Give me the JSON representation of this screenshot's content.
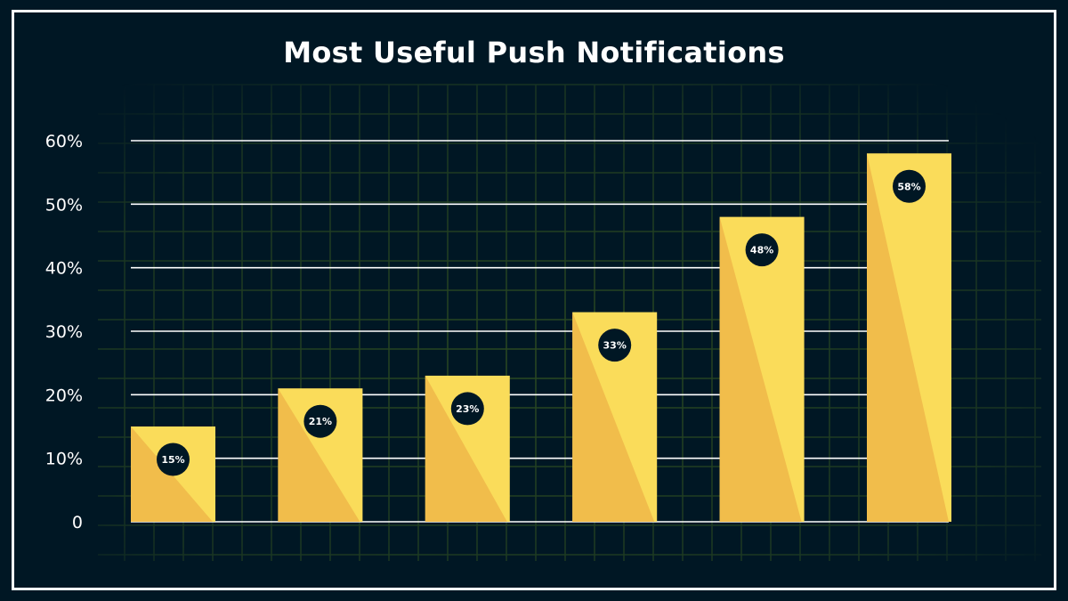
{
  "chart_data": {
    "type": "bar",
    "title": "Most Useful Push Notifications",
    "categories": [
      "",
      "",
      "",
      "",
      "",
      ""
    ],
    "values": [
      15,
      21,
      23,
      33,
      48,
      58
    ],
    "data_labels": [
      "15%",
      "21%",
      "23%",
      "33%",
      "48%",
      "58%"
    ],
    "yticks": [
      0,
      10,
      20,
      30,
      40,
      50,
      60
    ],
    "ytick_labels": [
      "0",
      "10%",
      "20%",
      "30%",
      "40%",
      "50%",
      "60%"
    ],
    "ylim": [
      0,
      60
    ],
    "grid": true,
    "legend": "none",
    "colors": {
      "background": "#001724",
      "bar_light": "#fadc5a",
      "bar_dark": "#f1bd4b",
      "label_circle": "#001724",
      "text": "#ffffff",
      "background_grid": "#2b4a22"
    }
  }
}
